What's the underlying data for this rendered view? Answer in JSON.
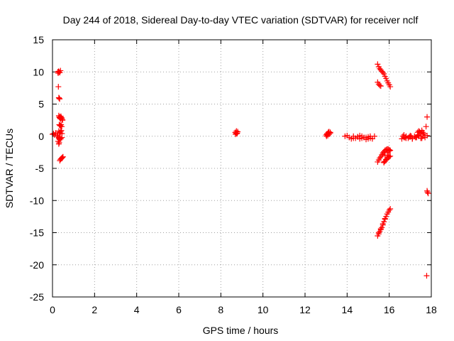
{
  "chart_data": {
    "type": "scatter",
    "title": "Day 244 of 2018, Sidereal Day-to-day VTEC variation (SDTVAR) for receiver nclf",
    "xlabel": "GPS time / hours",
    "ylabel": "SDTVAR / TECUs",
    "xlim": [
      0,
      18
    ],
    "ylim": [
      -25,
      15
    ],
    "xticks": [
      0,
      2,
      4,
      6,
      8,
      10,
      12,
      14,
      16,
      18
    ],
    "yticks": [
      -25,
      -20,
      -15,
      -10,
      -5,
      0,
      5,
      10,
      15
    ],
    "grid": true,
    "marker": "+",
    "color": "#ff0000",
    "series": [
      {
        "name": "SDTVAR",
        "x": [
          0.0,
          0.05,
          0.1,
          0.15,
          0.22,
          0.25,
          0.27,
          0.29,
          0.31,
          0.35,
          0.38,
          0.28,
          0.3,
          0.32,
          0.34,
          0.36,
          0.3,
          0.32,
          0.34,
          0.36,
          0.38,
          0.4,
          0.42,
          0.44,
          0.46,
          0.48,
          0.32,
          0.35,
          0.38,
          0.41,
          0.44,
          0.3,
          0.33,
          0.36,
          0.39,
          0.42,
          0.45,
          0.3,
          0.33,
          0.36,
          0.3,
          0.32,
          0.27,
          0.25,
          0.3,
          0.35,
          0.4,
          0.45,
          0.35,
          0.38,
          0.41,
          0.44,
          0.47,
          0.5,
          8.68,
          8.72,
          8.76,
          8.8,
          8.7,
          8.74,
          8.78,
          13.0,
          13.05,
          13.1,
          13.15,
          13.2,
          13.02,
          13.08,
          13.14,
          13.2,
          13.05,
          13.12,
          13.9,
          14.0,
          14.1,
          14.2,
          14.3,
          14.4,
          14.5,
          14.6,
          14.7,
          14.8,
          14.9,
          15.0,
          15.1,
          15.2,
          15.3,
          14.3,
          14.5,
          14.7,
          14.9,
          15.1,
          14.6,
          14.8,
          15.0,
          15.45,
          15.5,
          15.55,
          15.6,
          15.65,
          15.7,
          15.75,
          15.8,
          15.85,
          15.9,
          15.95,
          16.0,
          16.05,
          15.45,
          15.5,
          15.55,
          15.6,
          15.45,
          15.5,
          15.55,
          15.6,
          15.65,
          15.7,
          15.75,
          15.8,
          15.85,
          15.9,
          15.95,
          16.0,
          16.05,
          15.75,
          15.8,
          15.85,
          15.9,
          15.95,
          16.0,
          16.05,
          15.7,
          15.8,
          15.9,
          16.0,
          15.75,
          15.85,
          15.95,
          15.45,
          15.5,
          15.55,
          15.6,
          15.65,
          15.7,
          15.75,
          15.8,
          15.85,
          15.9,
          15.95,
          16.0,
          16.05,
          15.5,
          15.6,
          15.7,
          15.8,
          16.6,
          16.7,
          16.8,
          16.9,
          17.0,
          17.1,
          17.2,
          17.3,
          17.4,
          17.5,
          17.6,
          17.7,
          17.8,
          16.65,
          16.8,
          16.95,
          17.1,
          17.25,
          17.4,
          17.55,
          16.7,
          17.0,
          17.3,
          17.6,
          16.75,
          17.05,
          17.35,
          17.35,
          17.4,
          17.45,
          17.5,
          17.55,
          17.6,
          17.65,
          17.8,
          17.75,
          17.82,
          17.8,
          17.85,
          17.78
        ],
        "y": [
          0.3,
          0.4,
          0.2,
          0.5,
          0.0,
          10.0,
          9.8,
          10.1,
          10.0,
          9.9,
          10.2,
          7.7,
          6.0,
          5.9,
          5.8,
          3.0,
          3.2,
          3.0,
          2.9,
          2.8,
          2.7,
          3.1,
          2.9,
          2.8,
          2.6,
          2.5,
          1.8,
          1.7,
          1.6,
          1.8,
          1.5,
          0.8,
          0.6,
          0.5,
          0.7,
          0.9,
          0.4,
          -0.3,
          -0.5,
          -0.4,
          -1.2,
          -1.0,
          -0.8,
          0.2,
          -0.2,
          -0.3,
          -0.4,
          -0.2,
          -3.8,
          -3.6,
          -3.5,
          -3.4,
          -3.3,
          -3.2,
          0.6,
          0.5,
          0.4,
          0.7,
          0.3,
          0.8,
          0.5,
          0.2,
          0.4,
          0.6,
          0.3,
          0.5,
          0.0,
          0.1,
          0.7,
          0.6,
          0.3,
          0.5,
          0.0,
          0.1,
          -0.2,
          -0.4,
          0.0,
          -0.3,
          -0.1,
          -0.4,
          0.0,
          -0.2,
          -0.5,
          -0.1,
          -0.3,
          -0.4,
          0.0,
          -0.3,
          -0.1,
          -0.3,
          -0.2,
          0.0,
          0.1,
          -0.2,
          -0.4,
          11.2,
          10.8,
          10.5,
          10.3,
          10.1,
          9.9,
          9.7,
          9.3,
          9.0,
          8.6,
          8.3,
          8.0,
          7.7,
          8.4,
          8.1,
          7.9,
          7.8,
          -4.0,
          -3.7,
          -3.4,
          -3.2,
          -2.9,
          -2.6,
          -2.4,
          -2.2,
          -2.1,
          -2.0,
          -2.0,
          -2.1,
          -2.2,
          -4.1,
          -3.9,
          -3.7,
          -3.5,
          -3.3,
          -3.2,
          -3.1,
          -2.8,
          -3.0,
          -2.5,
          -2.3,
          -4.0,
          -3.6,
          -3.0,
          -15.5,
          -15.2,
          -14.8,
          -14.5,
          -14.2,
          -13.8,
          -13.3,
          -12.9,
          -12.5,
          -12.1,
          -11.8,
          -11.5,
          -11.3,
          -15.0,
          -14.4,
          -13.6,
          -12.8,
          -0.4,
          -0.2,
          0.0,
          -0.3,
          -0.1,
          -0.4,
          0.0,
          -0.2,
          0.1,
          -0.3,
          0.0,
          -0.2,
          0.1,
          0.0,
          -0.3,
          -0.1,
          -0.4,
          -0.2,
          0.0,
          -0.3,
          0.2,
          0.1,
          -0.1,
          0.3,
          -0.2,
          0.0,
          0.2,
          0.6,
          0.8,
          0.7,
          0.5,
          0.9,
          0.6,
          0.4,
          3.0,
          1.5,
          -8.7,
          -8.5,
          -8.9,
          -21.7
        ]
      }
    ]
  }
}
